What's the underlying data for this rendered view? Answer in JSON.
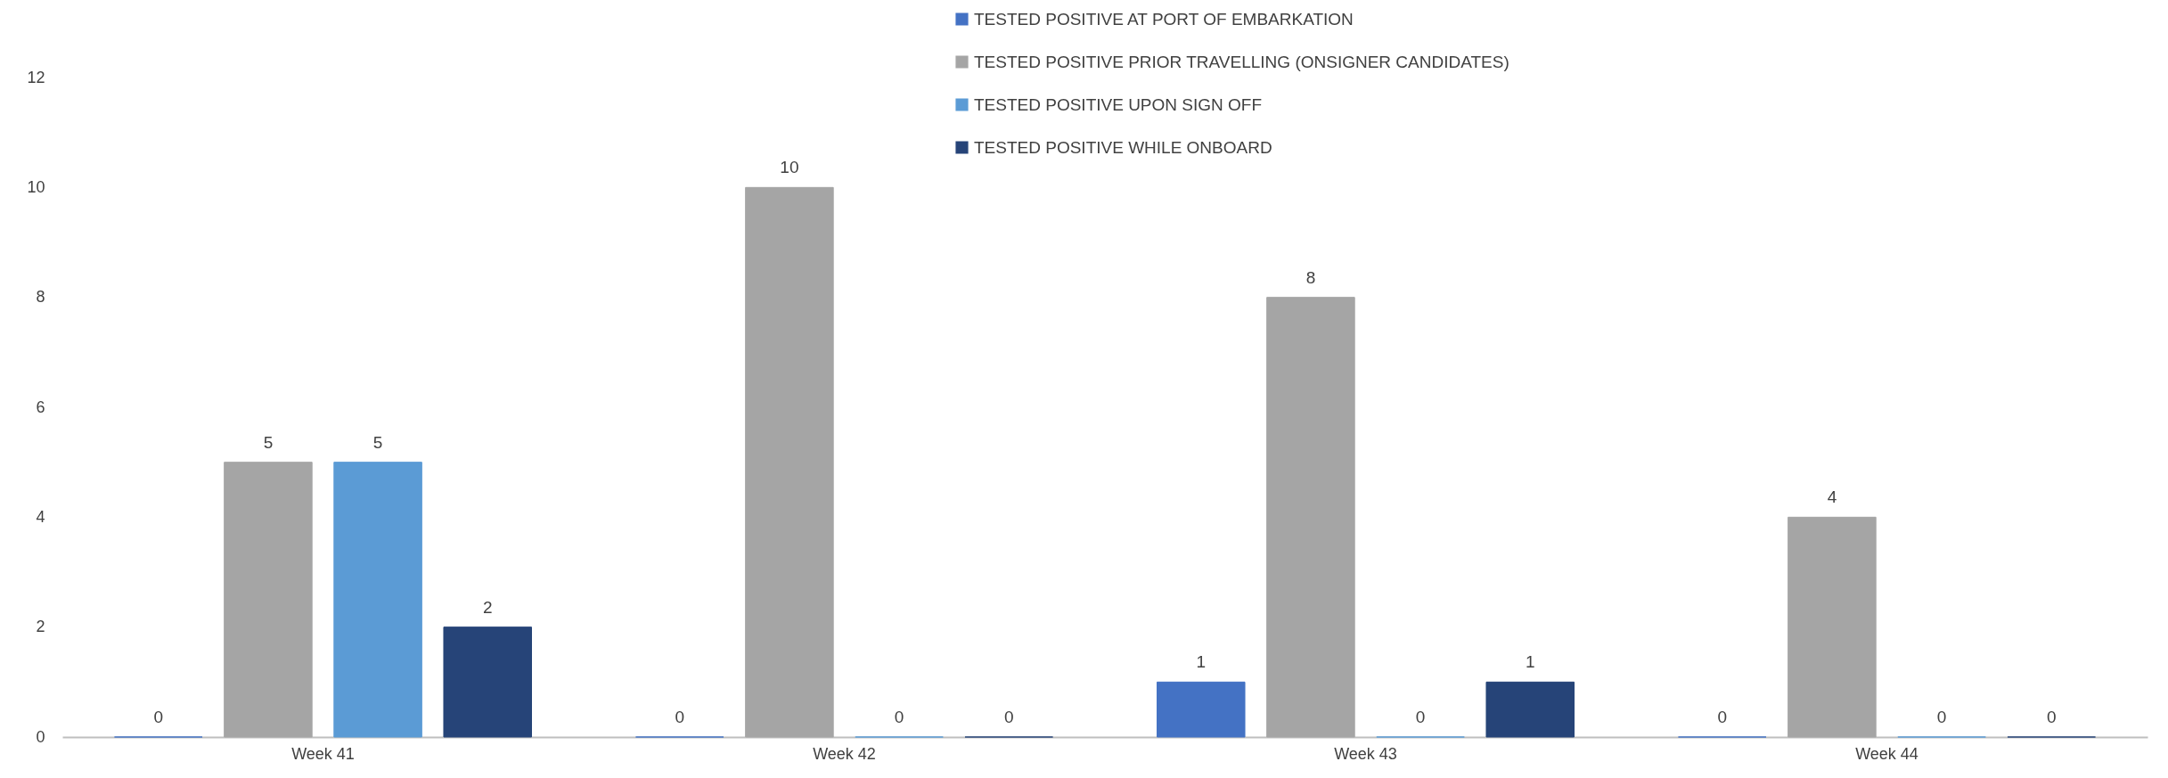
{
  "chart_data": {
    "type": "bar",
    "categories": [
      "Week 41",
      "Week 42",
      "Week 43",
      "Week 44"
    ],
    "series": [
      {
        "name": "TESTED POSITIVE AT PORT OF EMBARKATION",
        "color": "#4472c4",
        "values": [
          0,
          0,
          1,
          0
        ]
      },
      {
        "name": "TESTED POSITIVE PRIOR TRAVELLING (ONSIGNER CANDIDATES)",
        "color": "#a5a5a5",
        "values": [
          5,
          10,
          8,
          4
        ]
      },
      {
        "name": "TESTED POSITIVE UPON SIGN OFF",
        "color": "#5b9bd5",
        "values": [
          5,
          0,
          0,
          0
        ]
      },
      {
        "name": "TESTED POSITIVE WHILE ONBOARD",
        "color": "#264478",
        "values": [
          2,
          0,
          1,
          0
        ]
      }
    ],
    "ylim": [
      0,
      12
    ],
    "yticks": [
      0,
      2,
      4,
      6,
      8,
      10,
      12
    ],
    "data_labels": true,
    "grid": false,
    "legend": "top"
  }
}
